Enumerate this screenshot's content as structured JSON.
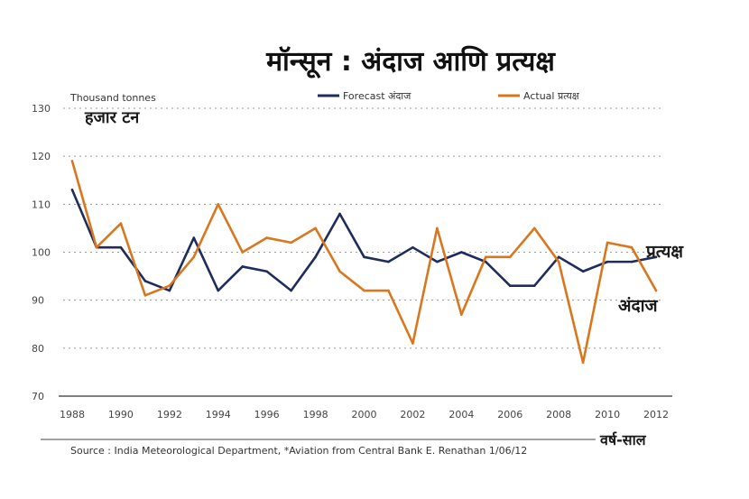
{
  "chart_data": {
    "type": "line",
    "title": "मॉन्सून : अंदाज आणि प्रत्यक्ष",
    "unit_en": "Thousand tonnes",
    "unit_hi": "हजार टन",
    "xlabel": "वर्ष-साल",
    "x": [
      1988,
      1989,
      1990,
      1991,
      1992,
      1993,
      1994,
      1995,
      1996,
      1997,
      1998,
      1999,
      2000,
      2001,
      2002,
      2003,
      2004,
      2005,
      2006,
      2007,
      2008,
      2009,
      2010,
      2011,
      2012
    ],
    "x_ticks": [
      1988,
      1990,
      1992,
      1994,
      1996,
      1998,
      2000,
      2002,
      2004,
      2006,
      2008,
      2010,
      2012
    ],
    "y_ticks": [
      70,
      80,
      90,
      100,
      110,
      120,
      130
    ],
    "ylim": [
      70,
      130
    ],
    "grid": true,
    "legend_position": "top",
    "series": [
      {
        "name": "Forecast अंदाज",
        "color": "#1f2d5c",
        "values": [
          113,
          101,
          101,
          94,
          92,
          103,
          92,
          97,
          96,
          92,
          99,
          108,
          99,
          98,
          101,
          98,
          100,
          98,
          93,
          93,
          99,
          96,
          98,
          98,
          99
        ]
      },
      {
        "name": "Actual प्रत्यक्ष",
        "color": "#d9771e",
        "values": [
          119,
          101,
          106,
          91,
          93,
          99,
          110,
          100,
          103,
          102,
          105,
          96,
          92,
          92,
          81,
          105,
          87,
          99,
          99,
          105,
          98,
          77,
          102,
          101,
          92
        ]
      }
    ],
    "annotations": [
      {
        "text": "प्रत्यक्ष",
        "series": 1
      },
      {
        "text": "अंदाज",
        "series": 0
      }
    ],
    "source": "Source : India Meteorological Department, *Aviation from Central Bank    E. Renathan 1/06/12"
  }
}
